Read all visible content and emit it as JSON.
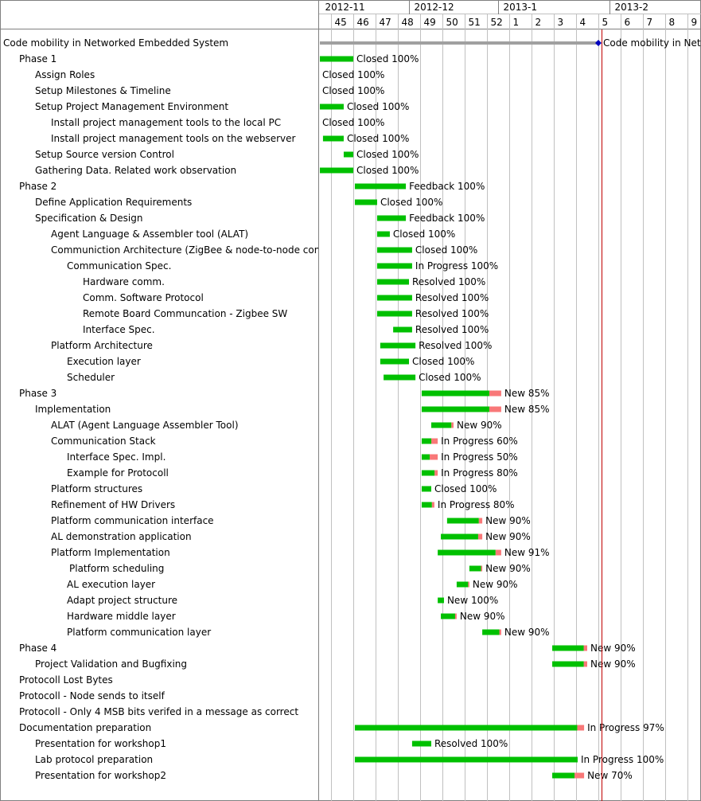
{
  "chart_data": {
    "type": "gantt",
    "timeline": {
      "months": [
        "2012-11",
        "2012-12",
        "2013-1",
        "2013-2"
      ],
      "weeks": [
        "45",
        "46",
        "47",
        "48",
        "49",
        "50",
        "51",
        "52",
        "1",
        "2",
        "3",
        "4",
        "5",
        "6",
        "7",
        "8",
        "9"
      ],
      "today_marker_week": "5"
    },
    "tasks": [
      {
        "name": "Code mobility in Networked Embedded System",
        "level": 0,
        "start": -0.5,
        "end": 12.0,
        "label": "Code mobility in Networked Embedded System",
        "kind": "summary"
      },
      {
        "name": "Phase 1",
        "level": 1,
        "start": -0.5,
        "end": 1.0,
        "progress": 100,
        "label": "Closed 100%"
      },
      {
        "name": "Assign Roles",
        "level": 2,
        "label": "Closed 100%"
      },
      {
        "name": "Setup Milestones & Timeline",
        "level": 2,
        "label": "Closed 100%"
      },
      {
        "name": "Setup Project Management Environment",
        "level": 2,
        "start": -0.5,
        "end": 0.57,
        "progress": 100,
        "label": "Closed 100%"
      },
      {
        "name": "Install project management tools to the local PC",
        "level": 3,
        "label": "Closed 100%"
      },
      {
        "name": "Install project management tools on the webserver",
        "level": 3,
        "start": -0.36,
        "end": 0.57,
        "progress": 100,
        "label": "Closed 100%"
      },
      {
        "name": "Setup Source version Control",
        "level": 2,
        "start": 0.57,
        "end": 1.0,
        "progress": 100,
        "label": "Closed 100%"
      },
      {
        "name": "Gathering Data. Related work observation",
        "level": 2,
        "start": -0.5,
        "end": 1.0,
        "progress": 100,
        "label": "Closed 100%"
      },
      {
        "name": "Phase 2",
        "level": 1,
        "start": 1.07,
        "end": 3.36,
        "progress": 100,
        "label": "Feedback 100%"
      },
      {
        "name": "Define Application Requirements",
        "level": 2,
        "start": 1.07,
        "end": 2.07,
        "progress": 100,
        "label": "Closed 100%"
      },
      {
        "name": "Specification & Design",
        "level": 2,
        "start": 2.07,
        "end": 3.36,
        "progress": 100,
        "label": "Feedback 100%"
      },
      {
        "name": "Agent Language & Assembler tool (ALAT)",
        "level": 3,
        "start": 2.07,
        "end": 2.64,
        "progress": 100,
        "label": "Closed 100%"
      },
      {
        "name": "Communiction Architecture (ZigBee & node-to-node communication)",
        "level": 3,
        "start": 2.07,
        "end": 3.64,
        "progress": 100,
        "label": "Closed 100%"
      },
      {
        "name": "Communication Spec.",
        "level": 4,
        "start": 2.07,
        "end": 3.64,
        "progress": 100,
        "label": "In Progress 100%"
      },
      {
        "name": "Hardware comm.",
        "level": 5,
        "start": 2.07,
        "end": 3.5,
        "progress": 100,
        "label": "Resolved 100%"
      },
      {
        "name": "Comm. Software Protocol",
        "level": 5,
        "start": 2.07,
        "end": 3.64,
        "progress": 100,
        "label": "Resolved 100%"
      },
      {
        "name": "Remote Board Communcation - Zigbee SW",
        "level": 5,
        "start": 2.07,
        "end": 3.64,
        "progress": 100,
        "label": "Resolved 100%"
      },
      {
        "name": "Interface Spec.",
        "level": 5,
        "start": 2.79,
        "end": 3.64,
        "progress": 100,
        "label": "Resolved 100%"
      },
      {
        "name": "Platform Architecture",
        "level": 3,
        "start": 2.21,
        "end": 3.79,
        "progress": 100,
        "label": "Resolved 100%"
      },
      {
        "name": "Execution layer",
        "level": 4,
        "start": 2.21,
        "end": 3.5,
        "progress": 100,
        "label": "Closed 100%"
      },
      {
        "name": "Scheduler",
        "level": 4,
        "start": 2.36,
        "end": 3.79,
        "progress": 100,
        "label": "Closed 100%"
      },
      {
        "name": "Phase 3",
        "level": 1,
        "start": 4.07,
        "end": 7.64,
        "progress": 85,
        "label": "New 85%"
      },
      {
        "name": "Implementation",
        "level": 2,
        "start": 4.07,
        "end": 7.64,
        "progress": 85,
        "label": "New 85%"
      },
      {
        "name": "ALAT (Agent Language Assembler Tool)",
        "level": 3,
        "start": 4.5,
        "end": 5.5,
        "progress": 90,
        "label": "New 90%"
      },
      {
        "name": "Communication Stack",
        "level": 3,
        "start": 4.07,
        "end": 4.79,
        "progress": 60,
        "label": "In Progress 60%"
      },
      {
        "name": "Interface Spec. Impl.",
        "level": 4,
        "start": 4.07,
        "end": 4.79,
        "progress": 50,
        "label": "In Progress 50%"
      },
      {
        "name": "Example for Protocoll",
        "level": 4,
        "start": 4.07,
        "end": 4.79,
        "progress": 80,
        "label": "In Progress 80%"
      },
      {
        "name": "Platform structures",
        "level": 3,
        "start": 4.07,
        "end": 4.5,
        "progress": 100,
        "label": "Closed 100%"
      },
      {
        "name": "Refinement of HW Drivers",
        "level": 3,
        "start": 4.07,
        "end": 4.64,
        "progress": 80,
        "label": "In Progress 80%"
      },
      {
        "name": "Platform communication interface",
        "level": 3,
        "start": 5.21,
        "end": 6.79,
        "progress": 90,
        "label": "New 90%"
      },
      {
        "name": "AL demonstration application",
        "level": 3,
        "start": 4.93,
        "end": 6.79,
        "progress": 90,
        "label": "New 90%"
      },
      {
        "name": "Platform Implementation",
        "level": 3,
        "start": 4.79,
        "end": 7.64,
        "progress": 91,
        "label": "New 91%"
      },
      {
        "name": "Platform scheduling",
        "level": 4,
        "indent_extra": true,
        "start": 6.21,
        "end": 6.79,
        "progress": 90,
        "label": "New 90%"
      },
      {
        "name": "AL execution layer",
        "level": 4,
        "start": 5.64,
        "end": 6.21,
        "progress": 90,
        "label": "New 90%"
      },
      {
        "name": "Adapt project structure",
        "level": 4,
        "start": 4.79,
        "end": 5.07,
        "progress": 100,
        "label": "New 100%"
      },
      {
        "name": "Hardware middle layer",
        "level": 4,
        "start": 4.93,
        "end": 5.64,
        "progress": 90,
        "label": "New 90%"
      },
      {
        "name": "Platform communication layer",
        "level": 4,
        "start": 6.79,
        "end": 7.64,
        "progress": 90,
        "label": "New 90%"
      },
      {
        "name": "Phase 4",
        "level": 1,
        "start": 9.93,
        "end": 11.5,
        "progress": 90,
        "label": "New 90%"
      },
      {
        "name": "Project Validation and Bugfixing",
        "level": 2,
        "start": 9.93,
        "end": 11.5,
        "progress": 90,
        "label": "New 90%"
      },
      {
        "name": "Protocoll Lost Bytes",
        "level": 1
      },
      {
        "name": "Protocoll - Node sends to itself",
        "level": 1
      },
      {
        "name": "Protocoll - Only 4 MSB bits verifed in a message as correct",
        "level": 1
      },
      {
        "name": "Documentation preparation",
        "level": 1,
        "start": 1.07,
        "end": 11.36,
        "progress": 97,
        "label": "In Progress 97%"
      },
      {
        "name": "Presentation for workshop1",
        "level": 2,
        "start": 3.64,
        "end": 4.5,
        "progress": 100,
        "label": "Resolved 100%"
      },
      {
        "name": "Lab protocol preparation",
        "level": 2,
        "start": 1.07,
        "end": 11.07,
        "progress": 100,
        "label": "In Progress 100%"
      },
      {
        "name": "Presentation for workshop2",
        "level": 2,
        "start": 9.93,
        "end": 11.36,
        "progress": 70,
        "label": "New 70%"
      }
    ],
    "colors": {
      "done": "#00c000",
      "todo": "#f87878",
      "summary": "#a0a0a0",
      "milestone": "#0000c0",
      "today": "#c00000",
      "grid": "#c0c0c0"
    }
  }
}
